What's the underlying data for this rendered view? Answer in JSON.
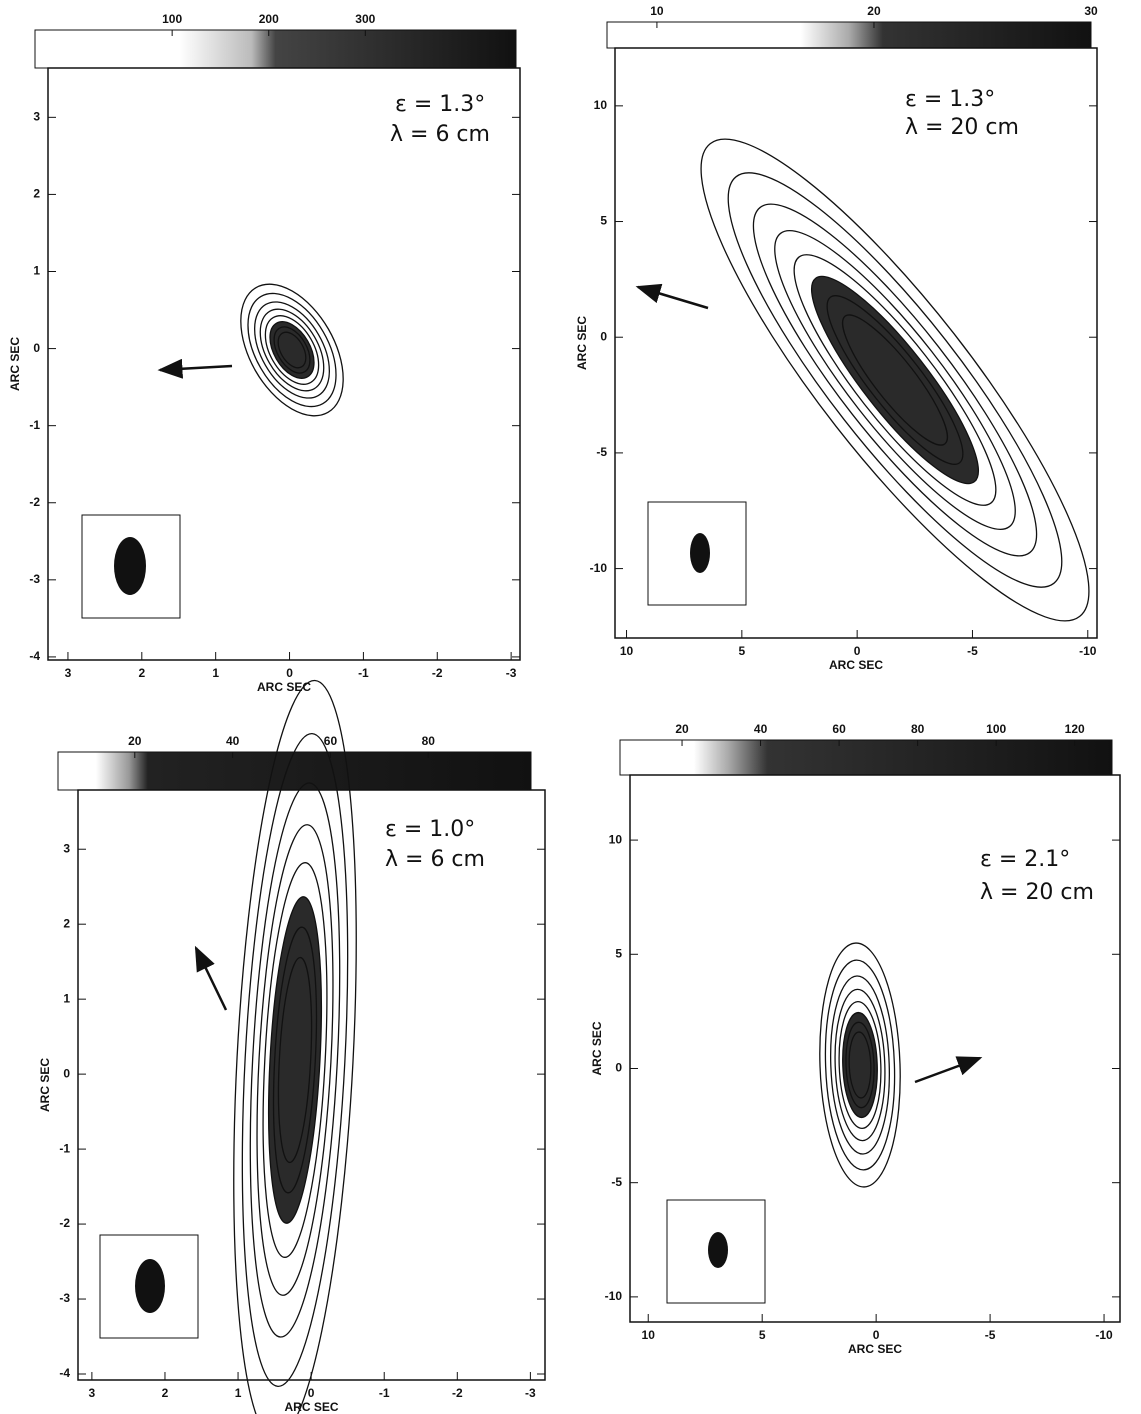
{
  "chart_data": [
    {
      "type": "contour",
      "x_label": "ARC SEC",
      "y_label": "ARC SEC",
      "annotations": [
        "ε = 1.3°",
        "λ = 6 cm"
      ],
      "xlim": [
        3.27,
        -3.12
      ],
      "xticks": [
        3,
        2,
        1,
        0,
        -1,
        -2,
        -3
      ],
      "ylim": [
        -4.04,
        3.64
      ],
      "yticks": [
        3,
        2,
        1,
        0,
        -1,
        -2,
        -3,
        -4
      ],
      "colorbar_lim": [
        -42,
        456
      ],
      "colorbar_ticks": [
        100,
        200,
        300
      ]
    },
    {
      "type": "contour",
      "x_label": "ARC SEC",
      "y_label": "ARC SEC",
      "annotations": [
        "ε = 1.3°",
        "λ = 20 cm"
      ],
      "xlim": [
        10.5,
        -10.4
      ],
      "xticks": [
        10,
        5,
        0,
        -5,
        -10
      ],
      "ylim": [
        -13,
        12.5
      ],
      "yticks": [
        10,
        5,
        0,
        -5,
        -10
      ],
      "colorbar_lim": [
        7.7,
        30
      ],
      "colorbar_ticks": [
        10,
        20,
        30
      ]
    },
    {
      "type": "contour",
      "x_label": "ARC SEC",
      "y_label": "ARC SEC",
      "annotations": [
        "ε = 1.0°",
        "λ = 6 cm"
      ],
      "xlim": [
        3.19,
        -3.2
      ],
      "xticks": [
        3,
        2,
        1,
        0,
        -1,
        -2,
        -3
      ],
      "ylim": [
        -4.08,
        3.79
      ],
      "yticks": [
        3,
        2,
        1,
        0,
        -1,
        -2,
        -3,
        -4
      ],
      "colorbar_lim": [
        4.3,
        101
      ],
      "colorbar_ticks": [
        20,
        40,
        60,
        80
      ]
    },
    {
      "type": "contour",
      "x_label": "ARC SEC",
      "y_label": "ARC SEC",
      "annotations": [
        "ε = 2.1°",
        "λ = 20 cm"
      ],
      "xlim": [
        10.8,
        -10.7
      ],
      "xticks": [
        10,
        5,
        0,
        -5,
        -10
      ],
      "ylim": [
        -11.1,
        12.85
      ],
      "yticks": [
        10,
        5,
        0,
        -5,
        -10
      ],
      "colorbar_lim": [
        4.2,
        129.5
      ],
      "colorbar_ticks": [
        20,
        40,
        60,
        80,
        100,
        120
      ]
    }
  ]
}
